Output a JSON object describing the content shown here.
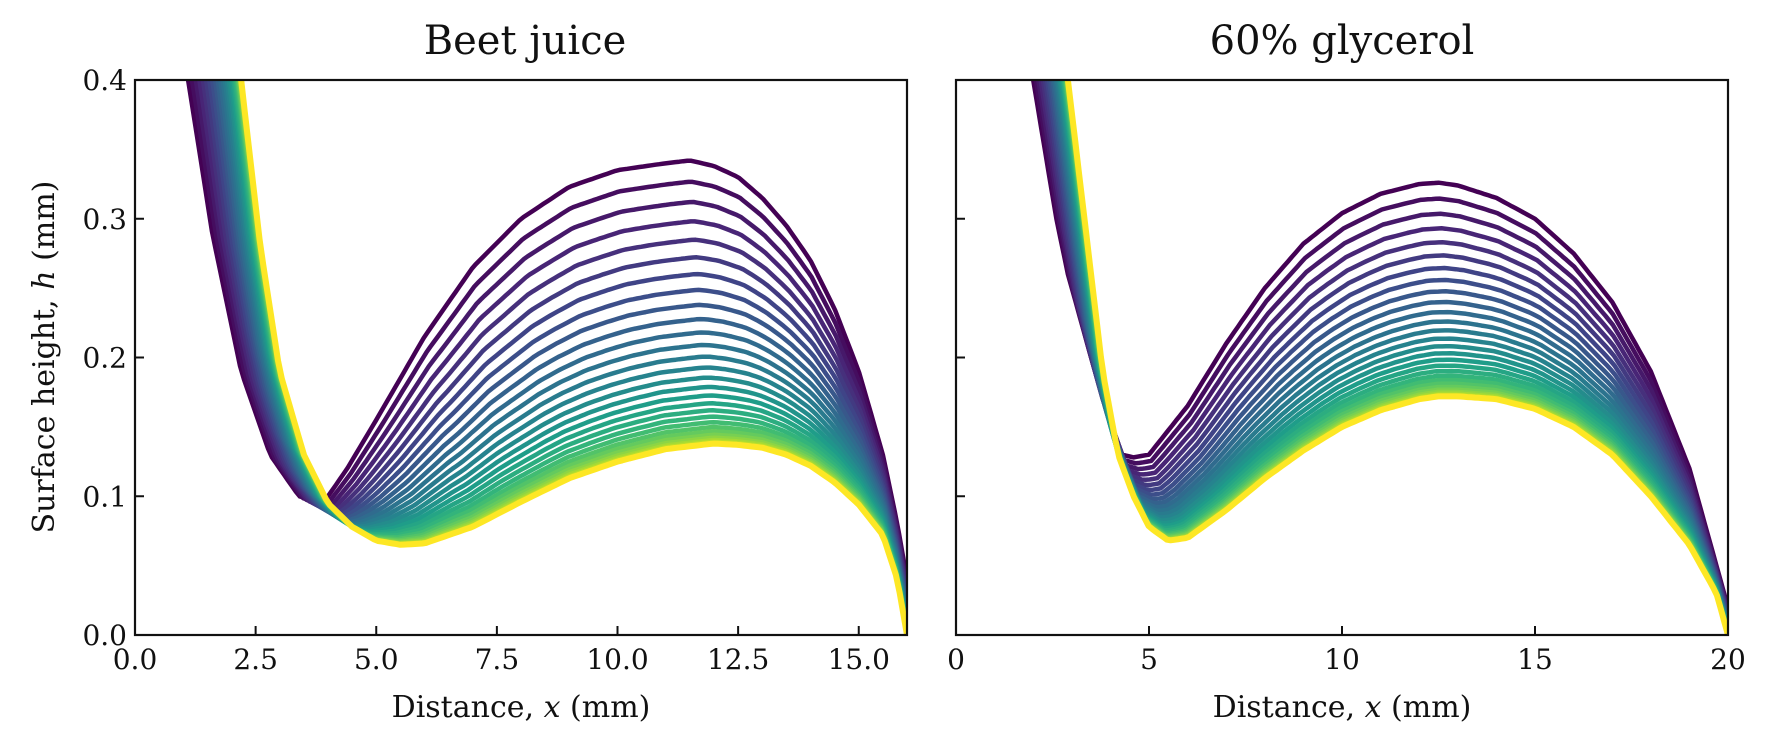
{
  "figure": {
    "ylabel_prefix": "Surface height, ",
    "ylabel_var": "h",
    "ylabel_suffix": " (mm)"
  },
  "colormap": [
    "#440154",
    "#482878",
    "#3e4989",
    "#31688e",
    "#26828e",
    "#1f9e89",
    "#35b779",
    "#6ece58",
    "#b5de2b",
    "#fde725"
  ],
  "chart_data": [
    {
      "type": "line",
      "title": "Beet juice",
      "xlabel_prefix": "Distance, ",
      "xlabel_var": "x",
      "xlabel_suffix": " (mm)",
      "xlim": [
        0,
        16.0
      ],
      "ylim": [
        0,
        0.4
      ],
      "xticks": [
        0,
        2.5,
        5,
        7.5,
        10,
        12.5,
        15
      ],
      "xtick_labels": [
        "0.0",
        "2.5",
        "5.0",
        "7.5",
        "10.0",
        "12.5",
        "15.0"
      ],
      "yticks": [
        0,
        0.1,
        0.2,
        0.3,
        0.4
      ],
      "ytick_labels": [
        "0.0",
        "0.1",
        "0.2",
        "0.3",
        "0.4"
      ],
      "series_count": 30,
      "first_profile": {
        "x": [
          1.1,
          1.6,
          2.2,
          2.8,
          3.4,
          3.9,
          4.4,
          5.0,
          6.0,
          7.0,
          8.0,
          9.0,
          10.0,
          11.0,
          11.5,
          12.0,
          12.5,
          13.0,
          13.5,
          14.0,
          14.5,
          15.0,
          15.5,
          15.8,
          16.0
        ],
        "y": [
          0.4,
          0.29,
          0.19,
          0.13,
          0.1,
          0.095,
          0.12,
          0.155,
          0.215,
          0.265,
          0.3,
          0.323,
          0.335,
          0.34,
          0.342,
          0.338,
          0.33,
          0.315,
          0.295,
          0.27,
          0.235,
          0.19,
          0.13,
          0.08,
          0.04
        ]
      },
      "last_profile": {
        "x": [
          2.2,
          2.6,
          3.0,
          3.5,
          4.0,
          4.5,
          5.0,
          5.5,
          6.0,
          7.0,
          8.0,
          9.0,
          10.0,
          11.0,
          12.0,
          12.5,
          13.0,
          13.5,
          14.0,
          14.5,
          15.0,
          15.5,
          15.8,
          16.0
        ],
        "y": [
          0.4,
          0.28,
          0.19,
          0.13,
          0.095,
          0.078,
          0.068,
          0.065,
          0.066,
          0.078,
          0.096,
          0.113,
          0.125,
          0.134,
          0.138,
          0.137,
          0.135,
          0.13,
          0.122,
          0.11,
          0.094,
          0.072,
          0.04,
          0.0
        ]
      }
    },
    {
      "type": "line",
      "title": "60% glycerol",
      "xlabel_prefix": "Distance, ",
      "xlabel_var": "x",
      "xlabel_suffix": " (mm)",
      "xlim": [
        0,
        20
      ],
      "ylim": [
        0,
        0.4
      ],
      "xticks": [
        0,
        5,
        10,
        15,
        20
      ],
      "xtick_labels": [
        "0",
        "5",
        "10",
        "15",
        "20"
      ],
      "yticks": [
        0,
        0.1,
        0.2,
        0.3,
        0.4
      ],
      "ytick_labels": [
        "",
        "",
        "",
        "",
        ""
      ],
      "series_count": 30,
      "first_profile": {
        "x": [
          2.0,
          2.3,
          2.6,
          2.9,
          3.1,
          3.4,
          3.8,
          4.3,
          4.6,
          5.0,
          6.0,
          7.0,
          8.0,
          9.0,
          10.0,
          11.0,
          12.0,
          12.5,
          13.0,
          14.0,
          15.0,
          16.0,
          17.0,
          18.0,
          19.0,
          19.7,
          20.0
        ],
        "y": [
          0.4,
          0.35,
          0.3,
          0.26,
          0.24,
          0.21,
          0.17,
          0.13,
          0.128,
          0.13,
          0.165,
          0.21,
          0.25,
          0.282,
          0.304,
          0.318,
          0.325,
          0.326,
          0.324,
          0.315,
          0.3,
          0.275,
          0.24,
          0.19,
          0.12,
          0.05,
          0.02
        ]
      },
      "last_profile": {
        "x": [
          2.9,
          3.2,
          3.5,
          3.8,
          4.2,
          4.6,
          5.0,
          5.5,
          6.0,
          7.0,
          8.0,
          9.0,
          10.0,
          11.0,
          12.0,
          12.5,
          13.0,
          14.0,
          15.0,
          16.0,
          17.0,
          18.0,
          19.0,
          19.7,
          20.0
        ],
        "y": [
          0.4,
          0.33,
          0.26,
          0.19,
          0.13,
          0.1,
          0.078,
          0.068,
          0.07,
          0.09,
          0.113,
          0.133,
          0.15,
          0.162,
          0.17,
          0.172,
          0.172,
          0.17,
          0.163,
          0.15,
          0.13,
          0.1,
          0.065,
          0.03,
          0.0
        ]
      }
    }
  ]
}
